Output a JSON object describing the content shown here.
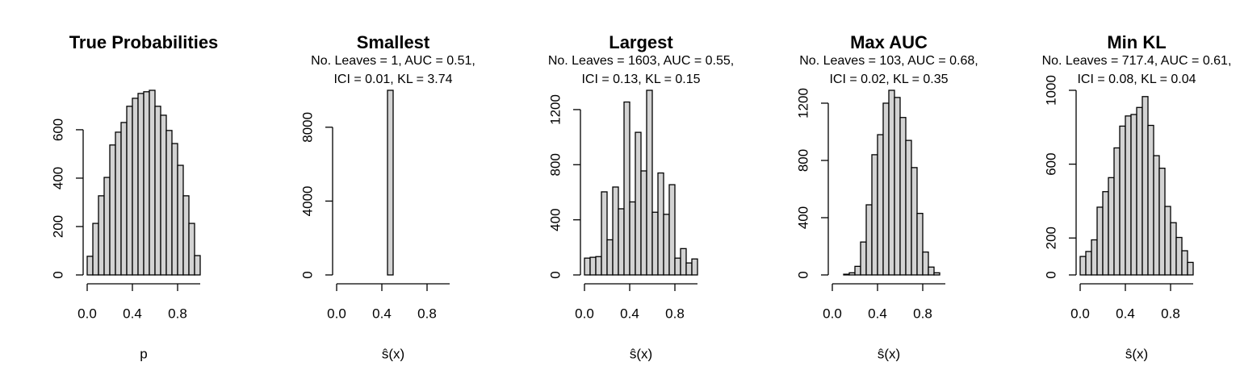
{
  "chart_data": [
    {
      "type": "histogram",
      "title": "True Probabilities",
      "xlabel": "p",
      "bins": [
        0,
        0.05,
        0.1,
        0.15,
        0.2,
        0.25,
        0.3,
        0.35,
        0.4,
        0.45,
        0.5,
        0.55,
        0.6,
        0.65,
        0.7,
        0.75,
        0.8,
        0.85,
        0.9,
        0.95,
        1
      ],
      "values": [
        77,
        213,
        327,
        403,
        537,
        590,
        630,
        697,
        730,
        750,
        757,
        763,
        697,
        660,
        597,
        543,
        453,
        327,
        213,
        80
      ],
      "color": "#d3d3d3",
      "xlim": [
        0,
        1
      ],
      "xticks": [
        {
          "value": 0,
          "label": "0.0"
        },
        0.4,
        0.8
      ],
      "ylim": [
        0,
        763
      ],
      "yticks": [
        0,
        200,
        400,
        600
      ]
    },
    {
      "type": "histogram",
      "title": "Smallest",
      "subtitle": [
        "No. Leaves = 1, AUC = 0.51,",
        "ICI = 0.01, KL = 3.74"
      ],
      "xlabel": "ŝ(x)",
      "bins": [
        0,
        0.05,
        0.1,
        0.15,
        0.2,
        0.25,
        0.3,
        0.35,
        0.4,
        0.45,
        0.5,
        0.55,
        0.6,
        0.65,
        0.7,
        0.75,
        0.8,
        0.85,
        0.9,
        0.95,
        1
      ],
      "values": [
        0,
        0,
        0,
        0,
        0,
        0,
        0,
        0,
        0,
        10000,
        0,
        0,
        0,
        0,
        0,
        0,
        0,
        0,
        0,
        0
      ],
      "color": "#d3d3d3",
      "xlim": [
        0,
        1
      ],
      "xticks": [
        {
          "value": 0,
          "label": "0.0"
        },
        0.4,
        0.8
      ],
      "ylim": [
        0,
        10000
      ],
      "yticks": [
        0,
        4000,
        8000
      ]
    },
    {
      "type": "histogram",
      "title": "Largest",
      "subtitle": [
        "No. Leaves = 1603, AUC = 0.55,",
        "ICI = 0.13, KL = 0.15"
      ],
      "xlabel": "ŝ(x)",
      "bins": [
        0,
        0.05,
        0.1,
        0.15,
        0.2,
        0.25,
        0.3,
        0.35,
        0.4,
        0.45,
        0.5,
        0.55,
        0.6,
        0.65,
        0.7,
        0.75,
        0.8,
        0.85,
        0.9,
        0.95,
        1
      ],
      "values": [
        122,
        128,
        133,
        603,
        255,
        638,
        480,
        1255,
        530,
        1035,
        755,
        1340,
        455,
        740,
        440,
        655,
        122,
        191,
        87,
        116
      ],
      "color": "#d3d3d3",
      "xlim": [
        0,
        1
      ],
      "xticks": [
        {
          "value": 0,
          "label": "0.0"
        },
        0.4,
        0.8
      ],
      "ylim": [
        0,
        1340
      ],
      "yticks": [
        0,
        400,
        800,
        1200
      ]
    },
    {
      "type": "histogram",
      "title": "Max AUC",
      "subtitle": [
        "No. Leaves = 103, AUC = 0.68,",
        "ICI = 0.02, KL = 0.35"
      ],
      "xlabel": "ŝ(x)",
      "bins": [
        0,
        0.05,
        0.1,
        0.15,
        0.2,
        0.25,
        0.3,
        0.35,
        0.4,
        0.45,
        0.5,
        0.55,
        0.6,
        0.65,
        0.7,
        0.75,
        0.8,
        0.85,
        0.9,
        0.95,
        1
      ],
      "values": [
        0,
        0,
        5,
        15,
        60,
        230,
        490,
        840,
        980,
        1200,
        1290,
        1240,
        1100,
        940,
        750,
        430,
        160,
        55,
        15,
        0
      ],
      "color": "#d3d3d3",
      "xlim": [
        0,
        1
      ],
      "xticks": [
        {
          "value": 0,
          "label": "0.0"
        },
        0.4,
        0.8
      ],
      "ylim": [
        0,
        1290
      ],
      "yticks": [
        0,
        400,
        800,
        1200
      ]
    },
    {
      "type": "histogram",
      "title": "Min KL",
      "subtitle": [
        "No. Leaves = 717.4, AUC = 0.61,",
        "ICI = 0.08, KL = 0.04"
      ],
      "xlabel": "ŝ(x)",
      "bins": [
        0,
        0.05,
        0.1,
        0.15,
        0.2,
        0.25,
        0.3,
        0.35,
        0.4,
        0.45,
        0.5,
        0.55,
        0.6,
        0.65,
        0.7,
        0.75,
        0.8,
        0.85,
        0.9,
        0.95,
        1
      ],
      "values": [
        100,
        127,
        190,
        367,
        451,
        527,
        688,
        806,
        861,
        869,
        907,
        966,
        810,
        646,
        578,
        371,
        283,
        203,
        131,
        68
      ],
      "color": "#d3d3d3",
      "xlim": [
        0,
        1
      ],
      "xticks": [
        {
          "value": 0,
          "label": "0.0"
        },
        0.4,
        0.8
      ],
      "ylim": [
        0,
        1000
      ],
      "yticks": [
        0,
        200,
        600,
        1000
      ]
    }
  ]
}
